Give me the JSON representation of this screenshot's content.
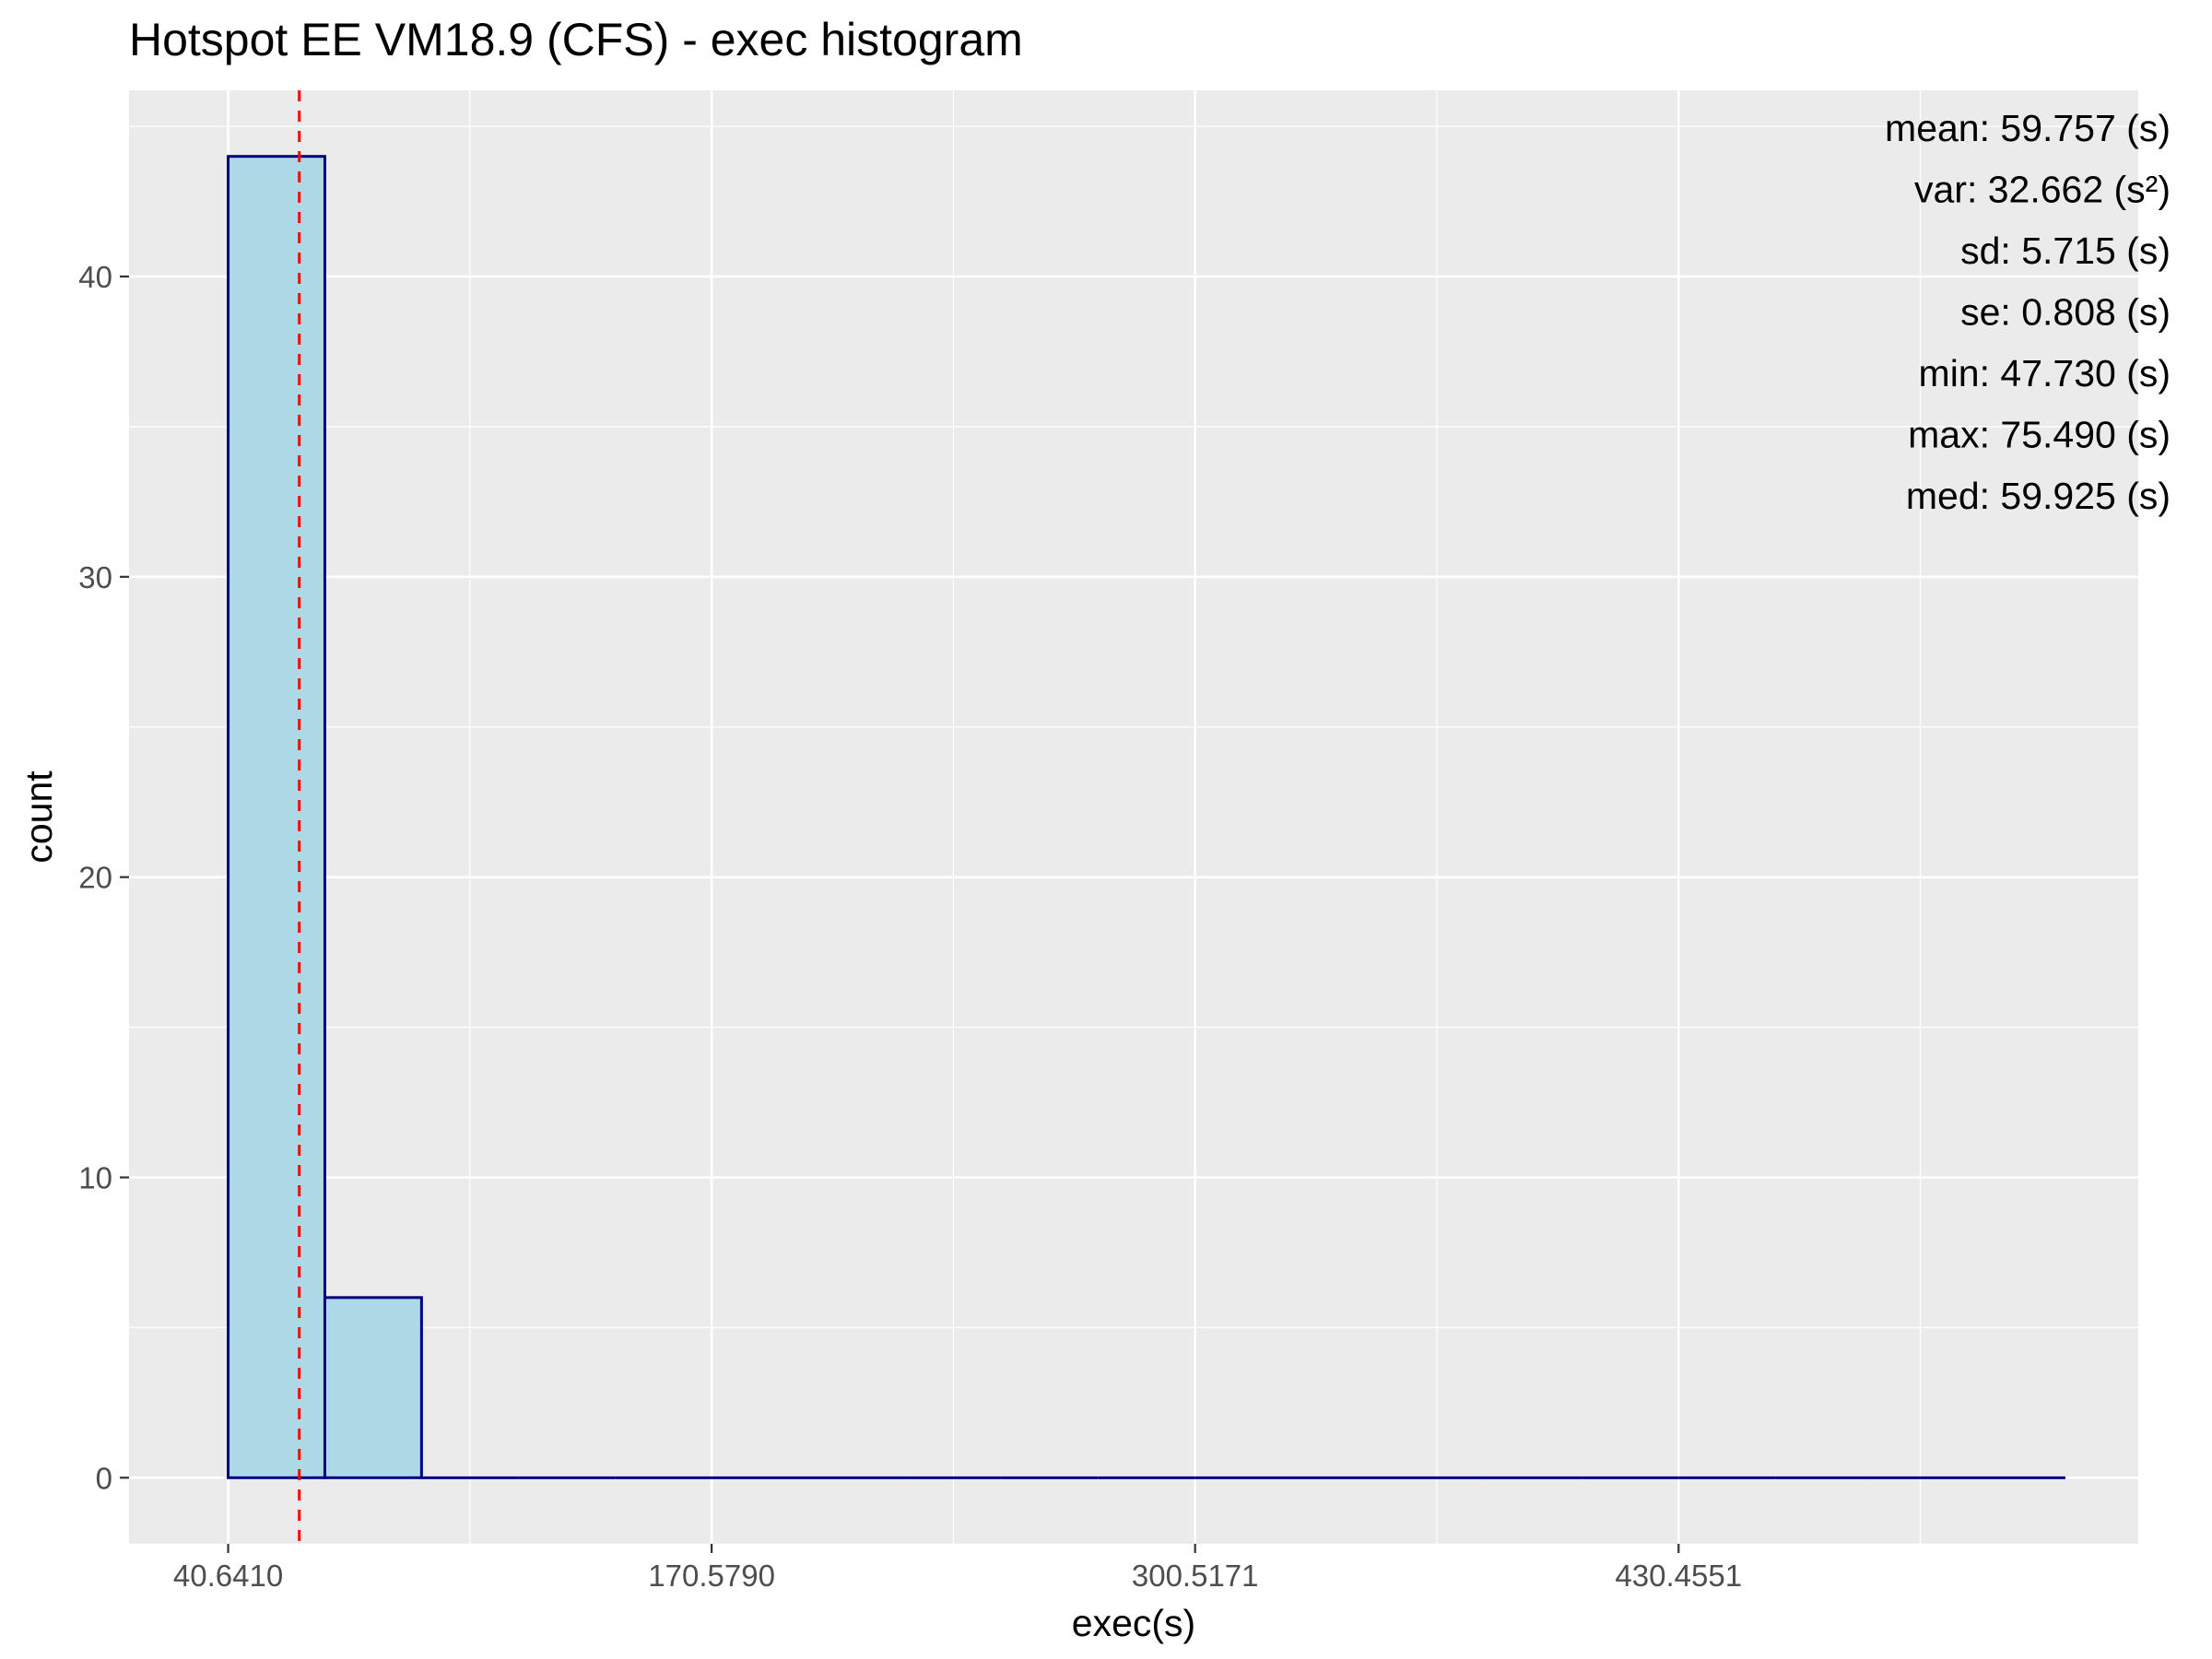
{
  "chart_data": {
    "type": "bar",
    "title": "Hotspot EE VM18.9 (CFS) - exec histogram",
    "xlabel": "exec(s)",
    "ylabel": "count",
    "bins": [
      {
        "x0": 40.641,
        "x1": 66.6286,
        "count": 44
      },
      {
        "x0": 66.6286,
        "x1": 92.6162,
        "count": 6
      },
      {
        "x0": 92.6162,
        "x1": 118.6038,
        "count": 0
      },
      {
        "x0": 118.6038,
        "x1": 144.5914,
        "count": 0
      },
      {
        "x0": 144.5914,
        "x1": 170.579,
        "count": 0
      },
      {
        "x0": 170.579,
        "x1": 196.5666,
        "count": 0
      },
      {
        "x0": 196.5666,
        "x1": 222.5542,
        "count": 0
      },
      {
        "x0": 222.5542,
        "x1": 248.5418,
        "count": 0
      },
      {
        "x0": 248.5418,
        "x1": 274.5294,
        "count": 0
      },
      {
        "x0": 274.5294,
        "x1": 300.5171,
        "count": 0
      },
      {
        "x0": 300.5171,
        "x1": 326.5047,
        "count": 0
      },
      {
        "x0": 326.5047,
        "x1": 352.4923,
        "count": 0
      },
      {
        "x0": 352.4923,
        "x1": 378.4799,
        "count": 0
      },
      {
        "x0": 378.4799,
        "x1": 404.4675,
        "count": 0
      },
      {
        "x0": 404.4675,
        "x1": 430.4551,
        "count": 0
      },
      {
        "x0": 430.4551,
        "x1": 456.4427,
        "count": 0
      },
      {
        "x0": 456.4427,
        "x1": 482.4303,
        "count": 0
      },
      {
        "x0": 482.4303,
        "x1": 508.4179,
        "count": 0
      },
      {
        "x0": 508.4179,
        "x1": 534.4055,
        "count": 0
      }
    ],
    "x_ticks": [
      "40.6410",
      "170.5790",
      "300.5171",
      "430.4551"
    ],
    "x_tick_values": [
      40.641,
      170.579,
      300.5171,
      430.4551
    ],
    "y_ticks": [
      0,
      10,
      20,
      30,
      40
    ],
    "xlim": [
      14.0,
      554.0
    ],
    "ylim": [
      -2.2,
      46.2
    ],
    "mean_line": {
      "x": 59.757,
      "color": "#ff0000",
      "style": "dashed"
    },
    "stats": [
      "mean: 59.757 (s)",
      "var: 32.662 (s²)",
      "sd: 5.715 (s)",
      "se: 0.808 (s)",
      "min: 47.730 (s)",
      "max: 75.490 (s)",
      "med: 59.925 (s)"
    ],
    "grid": true,
    "colors": {
      "bar_fill": "#add8e6",
      "bar_outline": "#000080",
      "panel_background": "#ebebeb",
      "grid_line": "#ffffff"
    }
  }
}
